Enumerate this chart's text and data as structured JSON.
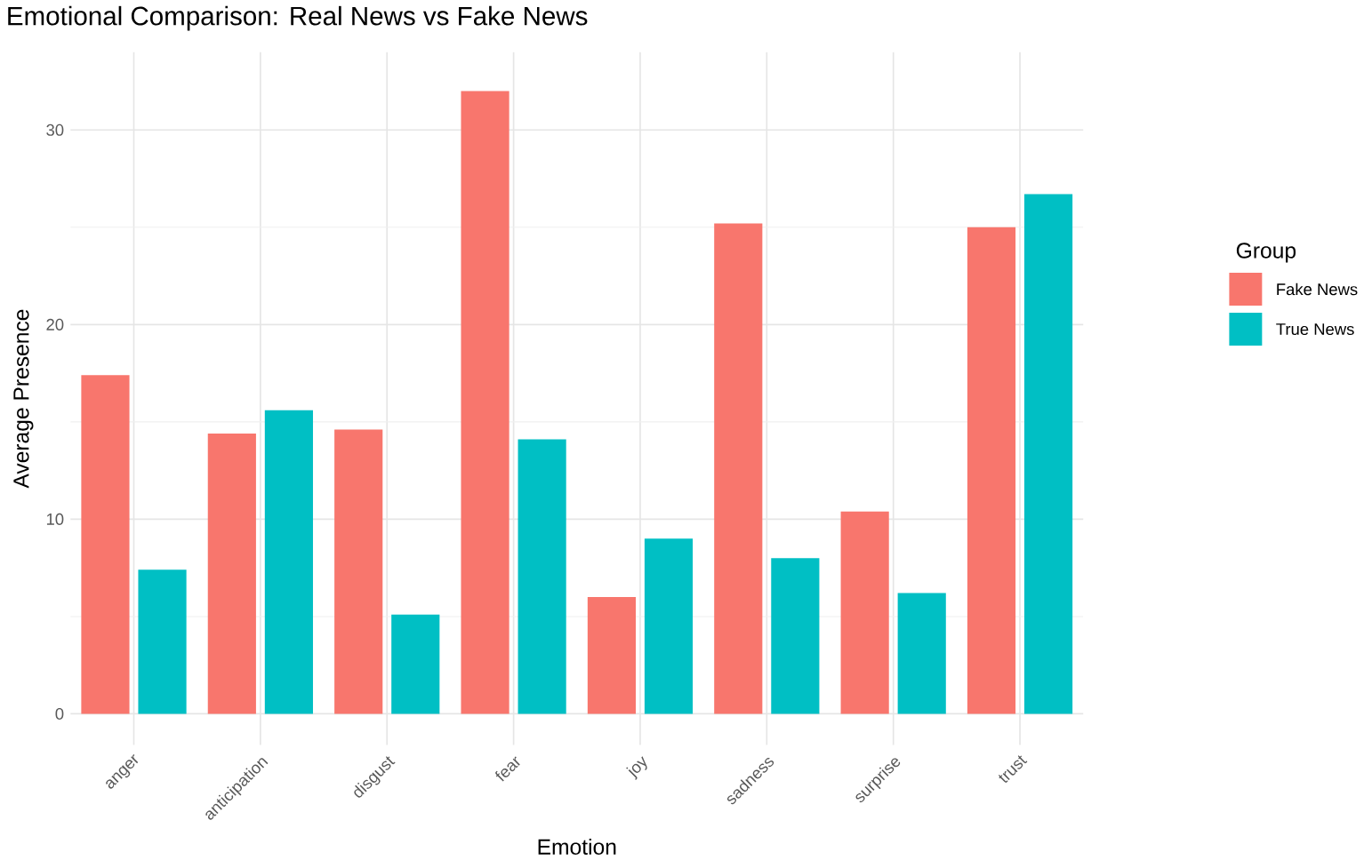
{
  "chart_data": {
    "type": "bar",
    "title": "Emotional Comparison: Real News vs Fake News",
    "xlabel": "Emotion",
    "ylabel": "Average Presence",
    "legend_title": "Group",
    "categories": [
      "anger",
      "anticipation",
      "disgust",
      "fear",
      "joy",
      "sadness",
      "surprise",
      "trust"
    ],
    "series": [
      {
        "name": "Fake News",
        "color": "#f8766d",
        "values": [
          17.4,
          14.4,
          14.6,
          32.0,
          6.0,
          25.2,
          10.4,
          25.0
        ]
      },
      {
        "name": "True News",
        "color": "#00bfc4",
        "values": [
          7.4,
          15.6,
          5.1,
          14.1,
          9.0,
          8.0,
          6.2,
          26.7
        ]
      }
    ],
    "ylim": [
      -1.6,
      34.0
    ],
    "yticks": [
      0,
      10,
      20,
      30
    ],
    "grid": true,
    "legend": "right"
  }
}
